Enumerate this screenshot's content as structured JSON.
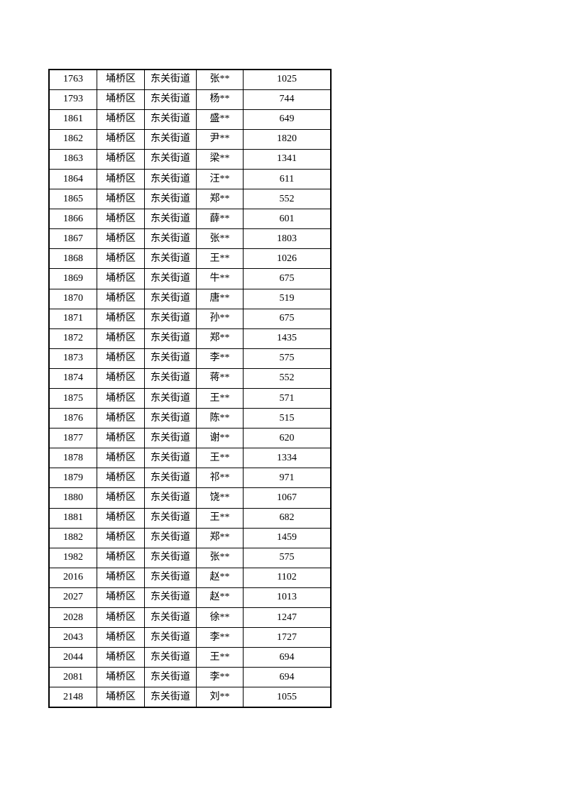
{
  "page": {
    "background": "#ffffff",
    "text_color": "#000000",
    "border_color": "#000000"
  },
  "table": {
    "columns": [
      {
        "key": "id"
      },
      {
        "key": "district"
      },
      {
        "key": "street"
      },
      {
        "key": "name"
      },
      {
        "key": "value"
      }
    ],
    "rows": [
      [
        "1763",
        "埇桥区",
        "东关街道",
        "张**",
        "1025"
      ],
      [
        "1793",
        "埇桥区",
        "东关街道",
        "杨**",
        "744"
      ],
      [
        "1861",
        "埇桥区",
        "东关街道",
        "盛**",
        "649"
      ],
      [
        "1862",
        "埇桥区",
        "东关街道",
        "尹**",
        "1820"
      ],
      [
        "1863",
        "埇桥区",
        "东关街道",
        "梁**",
        "1341"
      ],
      [
        "1864",
        "埇桥区",
        "东关街道",
        "汪**",
        "611"
      ],
      [
        "1865",
        "埇桥区",
        "东关街道",
        "郑**",
        "552"
      ],
      [
        "1866",
        "埇桥区",
        "东关街道",
        "薛**",
        "601"
      ],
      [
        "1867",
        "埇桥区",
        "东关街道",
        "张**",
        "1803"
      ],
      [
        "1868",
        "埇桥区",
        "东关街道",
        "王**",
        "1026"
      ],
      [
        "1869",
        "埇桥区",
        "东关街道",
        "牛**",
        "675"
      ],
      [
        "1870",
        "埇桥区",
        "东关街道",
        "唐**",
        "519"
      ],
      [
        "1871",
        "埇桥区",
        "东关街道",
        "孙**",
        "675"
      ],
      [
        "1872",
        "埇桥区",
        "东关街道",
        "郑**",
        "1435"
      ],
      [
        "1873",
        "埇桥区",
        "东关街道",
        "李**",
        "575"
      ],
      [
        "1874",
        "埇桥区",
        "东关街道",
        "蒋**",
        "552"
      ],
      [
        "1875",
        "埇桥区",
        "东关街道",
        "王**",
        "571"
      ],
      [
        "1876",
        "埇桥区",
        "东关街道",
        "陈**",
        "515"
      ],
      [
        "1877",
        "埇桥区",
        "东关街道",
        "谢**",
        "620"
      ],
      [
        "1878",
        "埇桥区",
        "东关街道",
        "王**",
        "1334"
      ],
      [
        "1879",
        "埇桥区",
        "东关街道",
        "祁**",
        "971"
      ],
      [
        "1880",
        "埇桥区",
        "东关街道",
        "饶**",
        "1067"
      ],
      [
        "1881",
        "埇桥区",
        "东关街道",
        "王**",
        "682"
      ],
      [
        "1882",
        "埇桥区",
        "东关街道",
        "郑**",
        "1459"
      ],
      [
        "1982",
        "埇桥区",
        "东关街道",
        "张**",
        "575"
      ],
      [
        "2016",
        "埇桥区",
        "东关街道",
        "赵**",
        "1102"
      ],
      [
        "2027",
        "埇桥区",
        "东关街道",
        "赵**",
        "1013"
      ],
      [
        "2028",
        "埇桥区",
        "东关街道",
        "徐**",
        "1247"
      ],
      [
        "2043",
        "埇桥区",
        "东关街道",
        "李**",
        "1727"
      ],
      [
        "2044",
        "埇桥区",
        "东关街道",
        "王**",
        "694"
      ],
      [
        "2081",
        "埇桥区",
        "东关街道",
        "李**",
        "694"
      ],
      [
        "2148",
        "埇桥区",
        "东关街道",
        "刘**",
        "1055"
      ]
    ]
  }
}
